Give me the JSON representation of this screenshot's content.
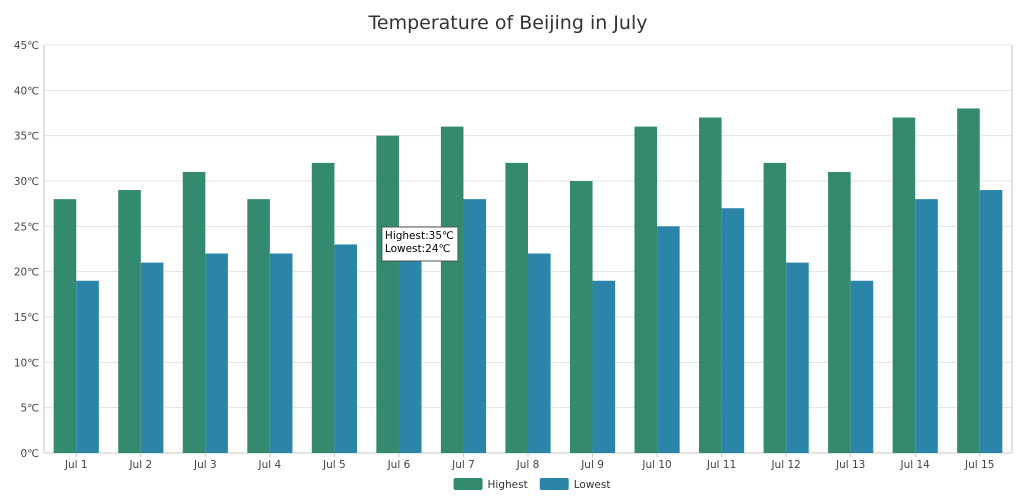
{
  "chart_data": {
    "type": "bar",
    "title": "Temperature of Beijing in July",
    "xlabel": "",
    "ylabel": "",
    "ylim": [
      0,
      45
    ],
    "y_tick_step": 5,
    "y_tick_labels": [
      "0℃",
      "5℃",
      "10℃",
      "15℃",
      "20℃",
      "25℃",
      "30℃",
      "35℃",
      "40℃",
      "45℃"
    ],
    "grid": true,
    "legend_position": "bottom-center",
    "categories": [
      "Jul 1",
      "Jul 2",
      "Jul 3",
      "Jul 4",
      "Jul 5",
      "Jul 6",
      "Jul 7",
      "Jul 8",
      "Jul 9",
      "Jul 10",
      "Jul 11",
      "Jul 12",
      "Jul 13",
      "Jul 14",
      "Jul 15"
    ],
    "series": [
      {
        "name": "Highest",
        "color": "#338a6e",
        "values": [
          28,
          29,
          31,
          28,
          32,
          35,
          36,
          32,
          30,
          36,
          37,
          32,
          31,
          37,
          38
        ]
      },
      {
        "name": "Lowest",
        "color": "#2b85a8",
        "values": [
          19,
          21,
          22,
          22,
          23,
          24,
          28,
          22,
          19,
          25,
          27,
          21,
          19,
          28,
          29
        ]
      }
    ],
    "tooltip": {
      "category": "Jul 6",
      "lines": [
        "Highest:35℃",
        "Lowest:24℃"
      ]
    }
  }
}
